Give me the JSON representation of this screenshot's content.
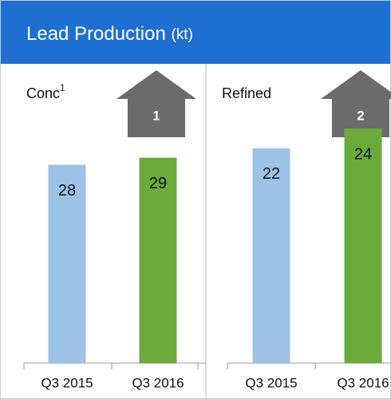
{
  "title": "Lead Production",
  "unit": "(kt)",
  "chart_data": [
    {
      "type": "bar",
      "title": "Conc",
      "title_footnote": "1",
      "categories": [
        "Q3 2015",
        "Q3 2016"
      ],
      "values": [
        28,
        29
      ],
      "colors": [
        "#9dc3e6",
        "#6aab3c"
      ],
      "ylim": [
        0,
        40
      ],
      "annotation": 1
    },
    {
      "type": "bar",
      "title": "Refined",
      "categories": [
        "Q3 2015",
        "Q3 2016"
      ],
      "values": [
        22,
        24
      ],
      "colors": [
        "#9dc3e6",
        "#6aab3c"
      ],
      "ylim": [
        0,
        29
      ],
      "annotation": 2
    }
  ]
}
